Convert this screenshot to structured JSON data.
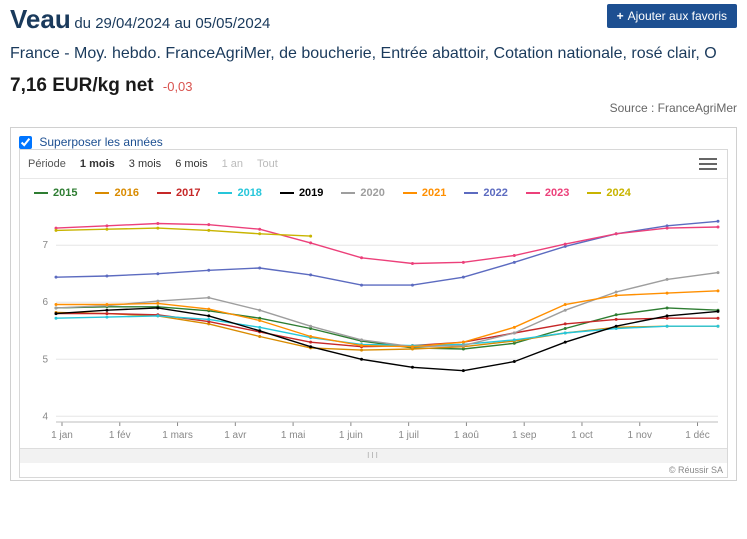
{
  "header": {
    "title": "Veau",
    "du": "du",
    "date_from": "29/04/2024",
    "au": "au",
    "date_to": "05/05/2024",
    "fav_btn_label": "Ajouter aux favoris"
  },
  "subtitle": "France - Moy. hebdo. FranceAgriMer, de boucherie, Entrée abattoir, Cotation nationale, rosé clair, O",
  "price": {
    "value": "7,16 EUR/kg net",
    "delta": "-0,03"
  },
  "source": "Source : FranceAgriMer",
  "overlay_checkbox_label": "Superposer les années",
  "overlay_checked": true,
  "period_row": {
    "label": "Période",
    "options": [
      {
        "label": "1 mois",
        "state": "sel"
      },
      {
        "label": "3 mois",
        "state": ""
      },
      {
        "label": "6 mois",
        "state": ""
      },
      {
        "label": "1 an",
        "state": "dis"
      },
      {
        "label": "Tout",
        "state": "dis"
      }
    ]
  },
  "chart": {
    "type": "line",
    "x_labels": [
      "1 jan",
      "1 fév",
      "1 mars",
      "1 avr",
      "1 mai",
      "1 juin",
      "1 juil",
      "1 aoû",
      "1 sep",
      "1 oct",
      "1 nov",
      "1 déc"
    ],
    "y_ticks": [
      4,
      5,
      6,
      7
    ],
    "ylim": [
      3.9,
      7.6
    ],
    "background": "#ffffff",
    "grid_color": "#e6e6e6",
    "tick_color": "#888888",
    "tick_fontsize": 10,
    "legend_fontsize": 11,
    "line_width": 1.4,
    "marker_radius": 1.5,
    "series": [
      {
        "name": "2015",
        "color": "#2e7d32",
        "values": [
          5.9,
          5.92,
          5.92,
          5.85,
          5.72,
          5.54,
          5.32,
          5.2,
          5.18,
          5.28,
          5.54,
          5.78,
          5.9,
          5.86
        ]
      },
      {
        "name": "2016",
        "color": "#d98b00",
        "values": [
          5.82,
          5.8,
          5.76,
          5.62,
          5.4,
          5.2,
          5.16,
          5.18,
          5.22,
          5.32,
          5.46,
          5.56,
          5.58,
          5.58
        ]
      },
      {
        "name": "2017",
        "color": "#c62828",
        "values": [
          5.8,
          5.8,
          5.78,
          5.66,
          5.48,
          5.3,
          5.22,
          5.24,
          5.3,
          5.46,
          5.62,
          5.7,
          5.72,
          5.72
        ]
      },
      {
        "name": "2018",
        "color": "#26c6da",
        "values": [
          5.72,
          5.74,
          5.76,
          5.7,
          5.56,
          5.38,
          5.26,
          5.24,
          5.26,
          5.34,
          5.46,
          5.54,
          5.58,
          5.58
        ]
      },
      {
        "name": "2019",
        "color": "#000000",
        "values": [
          5.8,
          5.86,
          5.9,
          5.76,
          5.5,
          5.22,
          5.0,
          4.86,
          4.8,
          4.96,
          5.3,
          5.58,
          5.76,
          5.84
        ]
      },
      {
        "name": "2020",
        "color": "#9e9e9e",
        "values": [
          5.9,
          5.94,
          6.02,
          6.08,
          5.86,
          5.58,
          5.34,
          5.22,
          5.24,
          5.46,
          5.86,
          6.18,
          6.4,
          6.52
        ]
      },
      {
        "name": "2021",
        "color": "#ff8f00",
        "values": [
          5.96,
          5.96,
          5.98,
          5.88,
          5.68,
          5.4,
          5.24,
          5.22,
          5.3,
          5.56,
          5.96,
          6.12,
          6.16,
          6.2
        ]
      },
      {
        "name": "2022",
        "color": "#5c6bc0",
        "values": [
          6.44,
          6.46,
          6.5,
          6.56,
          6.6,
          6.48,
          6.3,
          6.3,
          6.44,
          6.7,
          6.98,
          7.2,
          7.34,
          7.42
        ]
      },
      {
        "name": "2023",
        "color": "#ec407a",
        "values": [
          7.3,
          7.34,
          7.38,
          7.36,
          7.28,
          7.04,
          6.78,
          6.68,
          6.7,
          6.82,
          7.02,
          7.2,
          7.3,
          7.32
        ]
      },
      {
        "name": "2024",
        "color": "#c8b400",
        "values": [
          7.26,
          7.28,
          7.3,
          7.26,
          7.2,
          7.16
        ],
        "partial": true
      }
    ]
  },
  "copyright": "© Réussir SA"
}
